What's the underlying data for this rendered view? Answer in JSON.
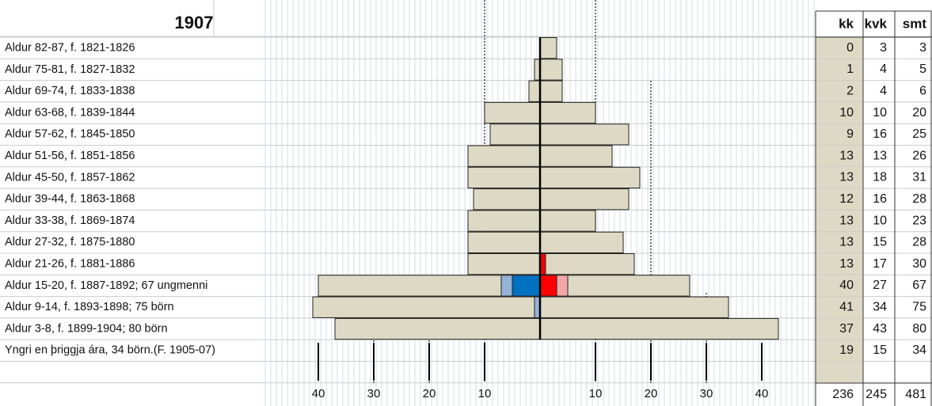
{
  "chart_data": {
    "type": "pyramid",
    "title": "1907",
    "categories": [
      "Aldur 82-87, f. 1821-1826",
      "Aldur 75-81, f. 1827-1832",
      "Aldur 69-74, f. 1833-1838",
      "Aldur 63-68, f. 1839-1844",
      "Aldur 57-62, f. 1845-1850",
      "Aldur 51-56, f. 1851-1856",
      "Aldur 45-50, f. 1857-1862",
      "Aldur 39-44, f. 1863-1868",
      "Aldur 33-38, f. 1869-1874",
      "Aldur 27-32, f. 1875-1880",
      "Aldur 21-26, f. 1881-1886",
      "Aldur 15-20, f. 1887-1892; 67 ungmenni",
      "Aldur 9-14, f. 1893-1898; 75 börn",
      "Aldur 3-8, f. 1899-1904;  80 börn",
      "Yngri en þriggja ára, 34 börn.(F. 1905-07)"
    ],
    "series": [
      {
        "side": "left",
        "layer": "base",
        "color": "#ddd9c4",
        "values": [
          0,
          1,
          2,
          10,
          9,
          13,
          13,
          12,
          13,
          13,
          13,
          40,
          41,
          37,
          null
        ]
      },
      {
        "side": "right",
        "layer": "base",
        "color": "#ddd9c4",
        "values": [
          3,
          4,
          4,
          10,
          16,
          13,
          18,
          16,
          10,
          15,
          17,
          27,
          34,
          43,
          null
        ]
      },
      {
        "side": "left",
        "layer": "overlay",
        "color": "#0070c0",
        "values": [
          null,
          null,
          null,
          null,
          null,
          null,
          null,
          null,
          null,
          null,
          null,
          5,
          null,
          null,
          null
        ]
      },
      {
        "side": "left",
        "layer": "overlay",
        "color": "#95b3d7",
        "values": [
          null,
          null,
          null,
          null,
          null,
          null,
          null,
          null,
          null,
          null,
          null,
          2,
          1,
          null,
          null
        ]
      },
      {
        "side": "right",
        "layer": "overlay",
        "color": "#ff0000",
        "values": [
          null,
          null,
          null,
          null,
          null,
          null,
          null,
          null,
          null,
          null,
          1,
          3,
          null,
          null,
          null
        ]
      },
      {
        "side": "right",
        "layer": "overlay",
        "color": "#f2a7a7",
        "values": [
          null,
          null,
          null,
          null,
          null,
          null,
          null,
          null,
          null,
          null,
          null,
          2,
          null,
          null,
          null
        ]
      }
    ],
    "xlim": [
      -50,
      50
    ],
    "xticks": [
      {
        "value": -40,
        "label": "40"
      },
      {
        "value": -30,
        "label": "30"
      },
      {
        "value": -20,
        "label": "20"
      },
      {
        "value": -10,
        "label": "10"
      },
      {
        "value": 10,
        "label": "10"
      },
      {
        "value": 20,
        "label": "20"
      },
      {
        "value": 30,
        "label": "30"
      },
      {
        "value": 40,
        "label": "40"
      }
    ]
  },
  "table": {
    "columns": [
      "kk",
      "kvk",
      "smt"
    ],
    "rows": [
      [
        0,
        3,
        3
      ],
      [
        1,
        4,
        5
      ],
      [
        2,
        4,
        6
      ],
      [
        10,
        10,
        20
      ],
      [
        9,
        16,
        25
      ],
      [
        13,
        13,
        26
      ],
      [
        13,
        18,
        31
      ],
      [
        12,
        16,
        28
      ],
      [
        13,
        10,
        23
      ],
      [
        13,
        15,
        28
      ],
      [
        13,
        17,
        30
      ],
      [
        40,
        27,
        67
      ],
      [
        41,
        34,
        75
      ],
      [
        37,
        43,
        80
      ],
      [
        19,
        15,
        34
      ]
    ],
    "totals": [
      236,
      245,
      481
    ]
  }
}
